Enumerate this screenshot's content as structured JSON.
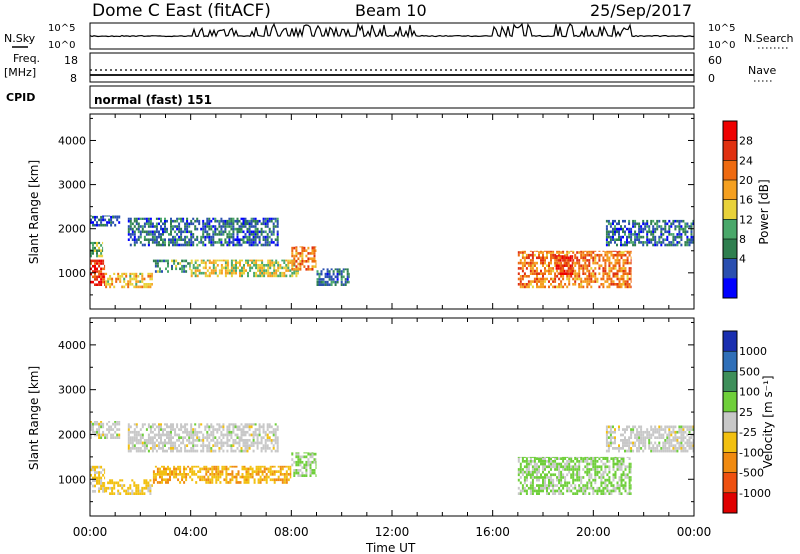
{
  "header": {
    "station": "Dome C East (fitACF)",
    "beam": "Beam 10",
    "date": "25/Sep/2017"
  },
  "summary": {
    "nsky_label": "N.Sky",
    "nsearch_label": "N.Search",
    "freq_label_1": "Freq.",
    "freq_label_2": "[MHz]",
    "nave_label": "Nave",
    "cpid_label": "CPID",
    "cpid_value": "normal (fast) 151",
    "noise_ticks": [
      "10^5",
      "10^0"
    ],
    "freq_ticks": [
      "18",
      "8"
    ],
    "nave_ticks": [
      "60",
      "0"
    ]
  },
  "axes": {
    "ylabel": "Slant Range [km]",
    "xlabel": "Time UT",
    "yticks": [
      "4000",
      "3000",
      "2000",
      "1000"
    ],
    "xticks": [
      "00:00",
      "04:00",
      "08:00",
      "12:00",
      "16:00",
      "20:00",
      "00:00"
    ]
  },
  "power_colorbar": {
    "label": "Power [dB]",
    "ticks": [
      "28",
      "24",
      "20",
      "16",
      "12",
      "8",
      "4"
    ],
    "colors": [
      "#0000ff",
      "#2a4fb0",
      "#2f7f4f",
      "#4aa86a",
      "#e8d23a",
      "#f5a020",
      "#ee6a10",
      "#e03010",
      "#ee0000"
    ]
  },
  "velocity_colorbar": {
    "label": "Velocity [m s⁻¹]",
    "ticks": [
      "1000",
      "500",
      "100",
      "25",
      "-25",
      "-100",
      "-500",
      "-1000"
    ],
    "colors": [
      "#1a2fb0",
      "#2f6fb8",
      "#3e8f5a",
      "#6fcf3a",
      "#c8c8c8",
      "#f2c010",
      "#f08a10",
      "#ee5010",
      "#e00000"
    ]
  },
  "chart_data": [
    {
      "type": "heatmap",
      "title": "Power",
      "xlabel": "Time UT",
      "ylabel": "Slant Range [km]",
      "xlim": [
        0,
        24
      ],
      "ylim": [
        180,
        4600
      ],
      "colorbar": {
        "label": "Power [dB]",
        "range": [
          0,
          32
        ]
      },
      "echo_regions": [
        {
          "t0": 0.0,
          "t1": 0.6,
          "r0": 700,
          "r1": 1300,
          "value": 27
        },
        {
          "t0": 0.0,
          "t1": 0.5,
          "r0": 1350,
          "r1": 1700,
          "value": 12
        },
        {
          "t0": 0.0,
          "t1": 1.2,
          "r0": 2050,
          "r1": 2300,
          "value": 6
        },
        {
          "t0": 0.6,
          "t1": 2.5,
          "r0": 650,
          "r1": 1000,
          "value": 18
        },
        {
          "t0": 2.5,
          "t1": 4.0,
          "r0": 1000,
          "r1": 1300,
          "value": 10
        },
        {
          "t0": 1.5,
          "t1": 7.5,
          "r0": 1600,
          "r1": 2250,
          "value": 7
        },
        {
          "t0": 4.0,
          "t1": 8.3,
          "r0": 900,
          "r1": 1300,
          "value": 16
        },
        {
          "t0": 8.0,
          "t1": 9.0,
          "r0": 1050,
          "r1": 1600,
          "value": 22
        },
        {
          "t0": 9.0,
          "t1": 10.3,
          "r0": 700,
          "r1": 1100,
          "value": 8
        },
        {
          "t0": 17.0,
          "t1": 21.5,
          "r0": 650,
          "r1": 1500,
          "value": 22
        },
        {
          "t0": 18.5,
          "t1": 19.2,
          "r0": 950,
          "r1": 1400,
          "value": 28
        },
        {
          "t0": 20.5,
          "t1": 24.0,
          "r0": 1600,
          "r1": 2200,
          "value": 7
        }
      ]
    },
    {
      "type": "heatmap",
      "title": "Velocity",
      "xlabel": "Time UT",
      "ylabel": "Slant Range [km]",
      "xlim": [
        0,
        24
      ],
      "ylim": [
        180,
        4600
      ],
      "colorbar": {
        "label": "Velocity [m s⁻¹]",
        "range": [
          -1000,
          1000
        ]
      },
      "echo_regions": [
        {
          "t0": 0.0,
          "t1": 0.6,
          "r0": 700,
          "r1": 1300,
          "value": -150
        },
        {
          "t0": 0.0,
          "t1": 1.2,
          "r0": 1900,
          "r1": 2300,
          "value": 0
        },
        {
          "t0": 0.6,
          "t1": 2.5,
          "r0": 650,
          "r1": 1000,
          "value": -200
        },
        {
          "t0": 1.5,
          "t1": 7.5,
          "r0": 1600,
          "r1": 2250,
          "value": 0
        },
        {
          "t0": 2.5,
          "t1": 8.0,
          "r0": 900,
          "r1": 1300,
          "value": -300
        },
        {
          "t0": 8.0,
          "t1": 9.0,
          "r0": 1050,
          "r1": 1600,
          "value": 150
        },
        {
          "t0": 17.0,
          "t1": 21.5,
          "r0": 650,
          "r1": 1500,
          "value": 150
        },
        {
          "t0": 20.5,
          "t1": 24.0,
          "r0": 1600,
          "r1": 2200,
          "value": 0
        }
      ]
    }
  ]
}
